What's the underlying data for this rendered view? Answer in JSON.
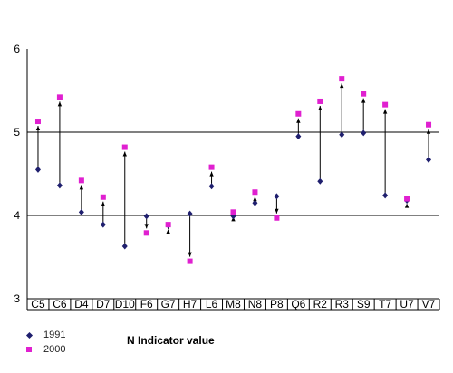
{
  "chart_data": {
    "type": "scatter",
    "title": "",
    "xlabel": "",
    "ylabel": "",
    "ylim": [
      3,
      6
    ],
    "yticks": [
      3,
      4,
      5,
      6
    ],
    "grid": "horizontal lines at 4 and 5",
    "categories": [
      "C5",
      "C6",
      "D4",
      "D7",
      "D10",
      "F6",
      "G7",
      "H7",
      "L6",
      "M8",
      "N8",
      "P8",
      "Q6",
      "R2",
      "R3",
      "S9",
      "T7",
      "U7",
      "V7"
    ],
    "series": [
      {
        "name": "1991",
        "marker": "diamond",
        "color": "#1f1f6e",
        "values": [
          4.55,
          4.36,
          4.04,
          3.89,
          3.63,
          3.99,
          3.88,
          4.02,
          4.35,
          3.99,
          4.15,
          4.23,
          4.95,
          4.41,
          4.97,
          4.99,
          4.24,
          4.18,
          4.67
        ]
      },
      {
        "name": "2000",
        "marker": "square",
        "color": "#e020d0",
        "values": [
          5.13,
          5.42,
          4.42,
          4.22,
          4.82,
          3.79,
          3.89,
          3.45,
          4.58,
          4.04,
          4.28,
          3.97,
          5.22,
          5.37,
          5.64,
          5.46,
          5.33,
          4.2,
          5.09
        ]
      }
    ],
    "arrows": "from 1991 value to 2000 value",
    "legend_placement": "bottom-left",
    "annotation": "N Indicator value"
  },
  "legend": {
    "entries": [
      {
        "label": "1991",
        "marker": "diamond"
      },
      {
        "label": "2000",
        "marker": "square"
      }
    ]
  },
  "indicator_label": "N Indicator value"
}
